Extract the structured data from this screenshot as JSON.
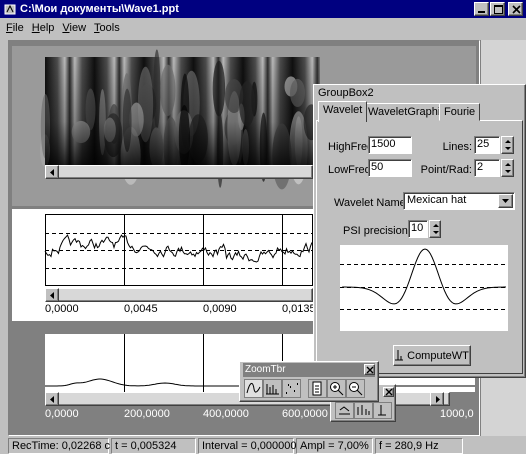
{
  "window": {
    "title": "C:\\Мои документы\\Wave1.ppt"
  },
  "menu": [
    "File",
    "Help",
    "View",
    "Tools"
  ],
  "signal_pane": {
    "x_labels": [
      "0,0000",
      "0,0045",
      "0,0090",
      "0,0135"
    ]
  },
  "spectrum_pane": {
    "x_labels": [
      "0,0000",
      "200,0000",
      "400,0000",
      "600,0000",
      "1000,0"
    ]
  },
  "groupbox": {
    "title": "GroupBox2",
    "tabs": [
      "Wavelet",
      "WaveletGraphic",
      "Fourie"
    ],
    "fields": {
      "high_freq": {
        "label": "HighFreq:",
        "value": "1500"
      },
      "lines": {
        "label": "Lines:",
        "value": "25"
      },
      "low_freq": {
        "label": "LowFreq:",
        "value": "50"
      },
      "point_rad": {
        "label": "Point/Rad:",
        "value": "2"
      },
      "wavelet_name": {
        "label": "Wavelet Name:",
        "value": "Mexican hat"
      },
      "psi_precision": {
        "label": "PSI precision",
        "value": "10"
      }
    },
    "button": "ComputeWT"
  },
  "zoom_toolbar": {
    "title": "ZoomTbr"
  },
  "status_bar": [
    "RecTime: 0,02268 c",
    "t = 0,005324",
    "Interval = 0,000000",
    "Ampl = 7,00%",
    "f = 280,9 Hz"
  ]
}
